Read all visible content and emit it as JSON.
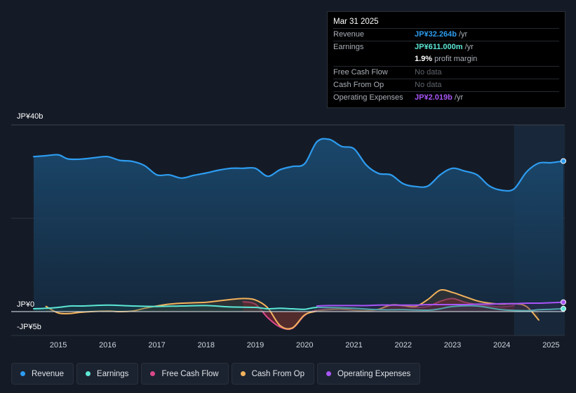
{
  "tooltip": {
    "date": "Mar 31 2025",
    "rows": [
      {
        "label": "Revenue",
        "value": "JP¥32.264b",
        "unit": " /yr",
        "color": "#2d9cf0"
      },
      {
        "label": "Earnings",
        "value": "JP¥611.000m",
        "unit": " /yr",
        "color": "#5ce8d6"
      },
      {
        "label": "",
        "value": "1.9%",
        "unit": " profit margin",
        "color": "#ffffff"
      },
      {
        "label": "Free Cash Flow",
        "value": "No data",
        "unit": "",
        "color": "muted"
      },
      {
        "label": "Cash From Op",
        "value": "No data",
        "unit": "",
        "color": "muted"
      },
      {
        "label": "Operating Expenses",
        "value": "JP¥2.019b",
        "unit": " /yr",
        "color": "#a855f7"
      }
    ]
  },
  "legend": [
    {
      "label": "Revenue",
      "color": "#2d9cf0"
    },
    {
      "label": "Earnings",
      "color": "#5ce8d6"
    },
    {
      "label": "Free Cash Flow",
      "color": "#d9488b"
    },
    {
      "label": "Cash From Op",
      "color": "#f2b25c"
    },
    {
      "label": "Operating Expenses",
      "color": "#a855f7"
    }
  ],
  "chart_data": {
    "type": "area",
    "y_labels": {
      "top": "JP¥40b",
      "zero": "JP¥0",
      "bottom": "-JP¥5b"
    },
    "ylim": [
      -5,
      40
    ],
    "xlim": [
      2014.5,
      2025.25
    ],
    "x_ticks": [
      "2015",
      "2016",
      "2017",
      "2018",
      "2019",
      "2020",
      "2021",
      "2022",
      "2023",
      "2024",
      "2025"
    ],
    "x_tick_values": [
      2015,
      2016,
      2017,
      2018,
      2019,
      2020,
      2021,
      2022,
      2023,
      2024,
      2025
    ],
    "highlight_start": 2024.25,
    "series": [
      {
        "name": "Revenue",
        "color": "#2d9cf0",
        "points": [
          [
            2014.5,
            33.2
          ],
          [
            2014.75,
            33.4
          ],
          [
            2015.0,
            33.6
          ],
          [
            2015.2,
            32.7
          ],
          [
            2015.5,
            32.7
          ],
          [
            2015.75,
            33.0
          ],
          [
            2016.0,
            33.2
          ],
          [
            2016.25,
            32.4
          ],
          [
            2016.5,
            32.2
          ],
          [
            2016.75,
            31.3
          ],
          [
            2017.0,
            29.3
          ],
          [
            2017.25,
            29.3
          ],
          [
            2017.5,
            28.6
          ],
          [
            2017.75,
            29.2
          ],
          [
            2018.0,
            29.7
          ],
          [
            2018.25,
            30.3
          ],
          [
            2018.5,
            30.7
          ],
          [
            2018.75,
            30.7
          ],
          [
            2019.0,
            30.7
          ],
          [
            2019.25,
            29.0
          ],
          [
            2019.5,
            30.4
          ],
          [
            2019.75,
            31.1
          ],
          [
            2020.0,
            31.7
          ],
          [
            2020.25,
            36.4
          ],
          [
            2020.5,
            36.9
          ],
          [
            2020.75,
            35.4
          ],
          [
            2021.0,
            34.9
          ],
          [
            2021.25,
            31.4
          ],
          [
            2021.5,
            29.6
          ],
          [
            2021.75,
            29.3
          ],
          [
            2022.0,
            27.4
          ],
          [
            2022.25,
            26.8
          ],
          [
            2022.5,
            26.9
          ],
          [
            2022.75,
            29.3
          ],
          [
            2023.0,
            30.7
          ],
          [
            2023.25,
            30.1
          ],
          [
            2023.5,
            29.3
          ],
          [
            2023.75,
            26.9
          ],
          [
            2024.0,
            26.0
          ],
          [
            2024.25,
            26.3
          ],
          [
            2024.5,
            29.9
          ],
          [
            2024.75,
            31.8
          ],
          [
            2025.0,
            31.9
          ],
          [
            2025.25,
            32.264
          ]
        ]
      },
      {
        "name": "Earnings",
        "color": "#5ce8d6",
        "points": [
          [
            2014.5,
            0.6
          ],
          [
            2014.75,
            0.7
          ],
          [
            2015.0,
            0.9
          ],
          [
            2015.25,
            1.2
          ],
          [
            2015.5,
            1.2
          ],
          [
            2016.0,
            1.4
          ],
          [
            2016.5,
            1.2
          ],
          [
            2017.0,
            1.1
          ],
          [
            2017.5,
            1.2
          ],
          [
            2018.0,
            1.3
          ],
          [
            2018.5,
            1.0
          ],
          [
            2019.0,
            0.9
          ],
          [
            2019.25,
            0.6
          ],
          [
            2019.5,
            0.7
          ],
          [
            2019.75,
            0.6
          ],
          [
            2020.0,
            0.5
          ],
          [
            2020.25,
            0.9
          ],
          [
            2020.75,
            0.8
          ],
          [
            2021.0,
            0.7
          ],
          [
            2021.5,
            0.4
          ],
          [
            2022.0,
            0.4
          ],
          [
            2022.5,
            0.3
          ],
          [
            2022.75,
            0.6
          ],
          [
            2023.0,
            1.1
          ],
          [
            2023.5,
            1.2
          ],
          [
            2024.0,
            0.4
          ],
          [
            2024.5,
            0.2
          ],
          [
            2024.75,
            0.4
          ],
          [
            2025.0,
            0.5
          ],
          [
            2025.25,
            0.611
          ]
        ]
      },
      {
        "name": "Free Cash Flow",
        "color": "#d9488b",
        "points": [
          [
            2018.75,
            2.1
          ],
          [
            2019.0,
            1.6
          ],
          [
            2019.25,
            -1.3
          ],
          [
            2019.5,
            -3.3
          ],
          [
            2019.75,
            -3.6
          ],
          [
            2020.0,
            -0.8
          ],
          [
            2020.25,
            0.3
          ],
          [
            2020.75,
            0.6
          ],
          [
            2021.0,
            0.3
          ],
          [
            2021.25,
            0.1
          ],
          [
            2021.5,
            0.5
          ],
          [
            2021.75,
            1.4
          ],
          [
            2022.0,
            1.2
          ],
          [
            2022.25,
            0.9
          ],
          [
            2022.5,
            1.1
          ],
          [
            2022.75,
            2.2
          ],
          [
            2023.0,
            2.8
          ],
          [
            2023.25,
            2.0
          ],
          [
            2023.5,
            1.5
          ],
          [
            2023.75,
            1.2
          ],
          [
            2024.0,
            1.0
          ],
          [
            2024.25,
            1.3
          ]
        ]
      },
      {
        "name": "Cash From Op",
        "color": "#f2b25c",
        "points": [
          [
            2014.75,
            1.1
          ],
          [
            2015.0,
            -0.3
          ],
          [
            2015.25,
            -0.4
          ],
          [
            2015.5,
            -0.1
          ],
          [
            2016.0,
            0.1
          ],
          [
            2016.25,
            0.0
          ],
          [
            2016.5,
            0.1
          ],
          [
            2016.75,
            0.7
          ],
          [
            2017.0,
            1.2
          ],
          [
            2017.25,
            1.6
          ],
          [
            2017.5,
            1.8
          ],
          [
            2017.75,
            1.9
          ],
          [
            2018.0,
            2.0
          ],
          [
            2018.25,
            2.3
          ],
          [
            2018.5,
            2.6
          ],
          [
            2018.75,
            2.8
          ],
          [
            2019.0,
            2.5
          ],
          [
            2019.25,
            0.8
          ],
          [
            2019.5,
            -3.0
          ],
          [
            2019.75,
            -3.5
          ],
          [
            2020.0,
            -0.7
          ],
          [
            2020.25,
            0.1
          ],
          [
            2020.5,
            0.4
          ],
          [
            2020.75,
            0.5
          ],
          [
            2021.0,
            0.3
          ],
          [
            2021.25,
            0.2
          ],
          [
            2021.5,
            0.5
          ],
          [
            2021.75,
            1.4
          ],
          [
            2022.0,
            1.3
          ],
          [
            2022.25,
            1.1
          ],
          [
            2022.5,
            2.6
          ],
          [
            2022.75,
            4.6
          ],
          [
            2023.0,
            4.1
          ],
          [
            2023.25,
            3.2
          ],
          [
            2023.5,
            2.3
          ],
          [
            2023.75,
            1.8
          ],
          [
            2024.0,
            1.6
          ],
          [
            2024.25,
            1.7
          ],
          [
            2024.5,
            1.1
          ],
          [
            2024.75,
            -1.8
          ]
        ]
      },
      {
        "name": "Operating Expenses",
        "color": "#a855f7",
        "points": [
          [
            2020.25,
            1.2
          ],
          [
            2020.5,
            1.3
          ],
          [
            2020.75,
            1.3
          ],
          [
            2021.0,
            1.3
          ],
          [
            2021.25,
            1.3
          ],
          [
            2021.5,
            1.4
          ],
          [
            2021.75,
            1.4
          ],
          [
            2022.0,
            1.4
          ],
          [
            2022.25,
            1.4
          ],
          [
            2022.5,
            1.5
          ],
          [
            2022.75,
            1.5
          ],
          [
            2023.0,
            1.5
          ],
          [
            2023.25,
            1.5
          ],
          [
            2023.5,
            1.6
          ],
          [
            2023.75,
            1.6
          ],
          [
            2024.0,
            1.7
          ],
          [
            2024.25,
            1.7
          ],
          [
            2024.5,
            1.8
          ],
          [
            2024.75,
            1.8
          ],
          [
            2025.0,
            1.9
          ],
          [
            2025.25,
            2.019
          ]
        ]
      }
    ]
  }
}
